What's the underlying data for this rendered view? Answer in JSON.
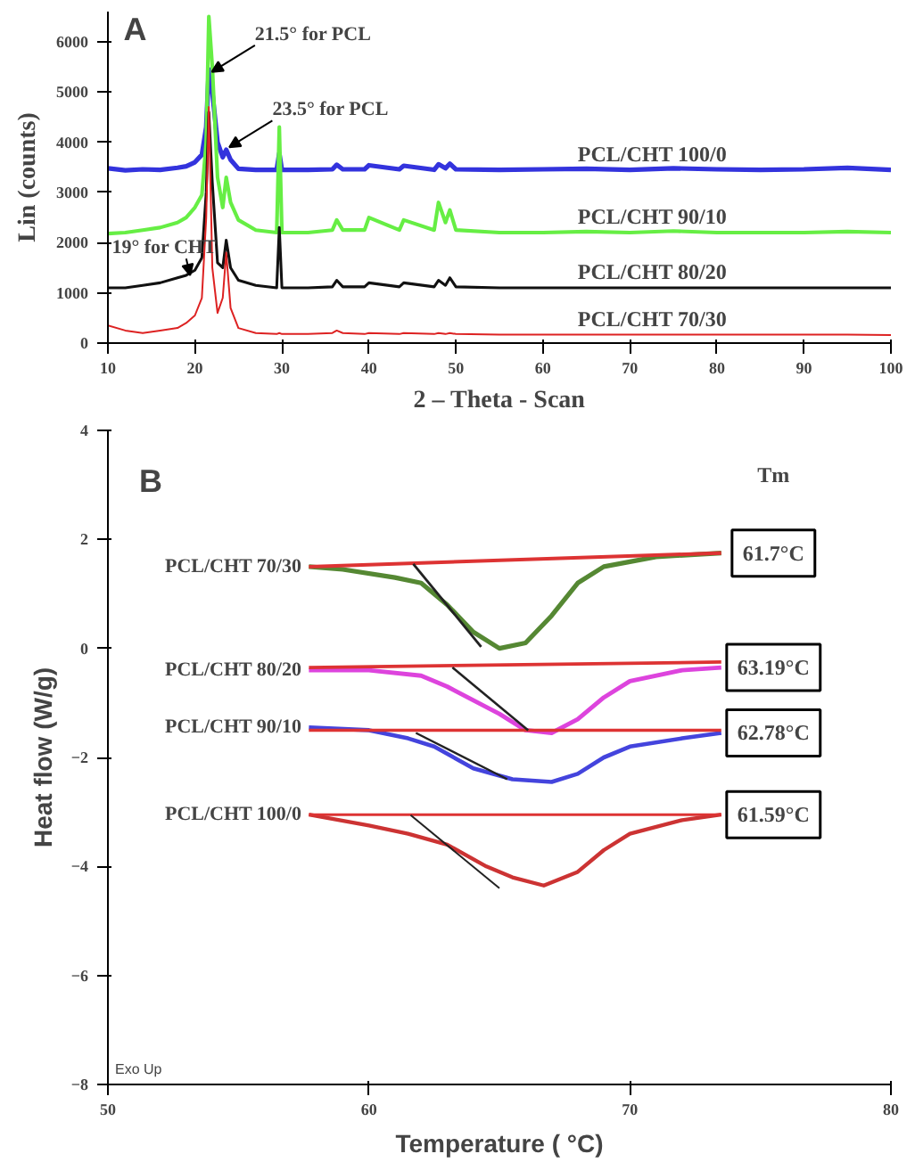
{
  "chart_data": [
    {
      "type": "line",
      "title": "A",
      "xlabel": "2 – Theta - Scan",
      "ylabel": "Lin (counts)",
      "xlim": [
        10,
        100
      ],
      "ylim": [
        0,
        6600
      ],
      "xticks": [
        10,
        20,
        30,
        40,
        50,
        60,
        70,
        80,
        90,
        100
      ],
      "yticks": [
        0,
        1000,
        2000,
        3000,
        4000,
        5000,
        6000
      ],
      "annotations": [
        {
          "text": "21.5° for PCL",
          "x": 21.5,
          "y": 5400
        },
        {
          "text": "23.5° for PCL",
          "x": 23.5,
          "y": 3900
        },
        {
          "text": "19° for CHT",
          "x": 19,
          "y": 1350
        }
      ],
      "series": [
        {
          "name": "PCL/CHT 100/0",
          "color": "#3333dd",
          "x": [
            10,
            12,
            14,
            16,
            18,
            19,
            20,
            20.8,
            21.3,
            21.6,
            22,
            22.6,
            23.2,
            23.6,
            24.1,
            25,
            27,
            29.4,
            29.7,
            30,
            33,
            35.8,
            36.3,
            37,
            39.5,
            40,
            43.5,
            44,
            47.5,
            48,
            48.8,
            49.3,
            50,
            55,
            60,
            65,
            70,
            75,
            80,
            85,
            90,
            95,
            100
          ],
          "values": [
            3480,
            3440,
            3460,
            3450,
            3490,
            3520,
            3600,
            3750,
            4300,
            5450,
            5000,
            4000,
            3700,
            3850,
            3650,
            3470,
            3450,
            3450,
            3780,
            3450,
            3450,
            3460,
            3550,
            3460,
            3460,
            3540,
            3460,
            3530,
            3450,
            3560,
            3480,
            3570,
            3460,
            3450,
            3460,
            3470,
            3450,
            3480,
            3460,
            3450,
            3460,
            3490,
            3450
          ]
        },
        {
          "name": "PCL/CHT 90/10",
          "color": "#66ee44",
          "x": [
            10,
            12,
            14,
            16,
            18,
            19,
            20,
            20.8,
            21.3,
            21.6,
            22,
            22.6,
            23.2,
            23.6,
            24.1,
            25,
            27,
            29.4,
            29.7,
            30,
            33,
            35.8,
            36.3,
            37,
            39.5,
            40,
            43.5,
            44,
            47.5,
            48,
            48.8,
            49.3,
            50,
            55,
            60,
            65,
            70,
            75,
            80,
            85,
            90,
            95,
            100
          ],
          "values": [
            2180,
            2200,
            2250,
            2300,
            2400,
            2500,
            2700,
            2950,
            4000,
            6500,
            5500,
            3300,
            2700,
            3300,
            2800,
            2450,
            2250,
            2200,
            4300,
            2200,
            2200,
            2250,
            2450,
            2250,
            2250,
            2500,
            2250,
            2450,
            2250,
            2800,
            2400,
            2650,
            2250,
            2200,
            2200,
            2220,
            2200,
            2230,
            2200,
            2200,
            2200,
            2220,
            2200
          ]
        },
        {
          "name": "PCL/CHT 80/20",
          "color": "#111111",
          "x": [
            10,
            12,
            14,
            16,
            18,
            19,
            20,
            20.8,
            21.3,
            21.6,
            22,
            22.6,
            23.2,
            23.6,
            24.1,
            25,
            27,
            29.4,
            29.7,
            30,
            33,
            35.8,
            36.3,
            37,
            39.5,
            40,
            43.5,
            44,
            47.5,
            48,
            48.8,
            49.3,
            50,
            55,
            60,
            65,
            70,
            75,
            80,
            85,
            90,
            95,
            100
          ],
          "values": [
            1100,
            1100,
            1150,
            1200,
            1300,
            1350,
            1450,
            1700,
            3000,
            4600,
            3200,
            1600,
            1500,
            2050,
            1500,
            1250,
            1150,
            1100,
            2300,
            1100,
            1100,
            1120,
            1250,
            1120,
            1120,
            1200,
            1120,
            1200,
            1120,
            1250,
            1150,
            1300,
            1120,
            1100,
            1100,
            1100,
            1100,
            1100,
            1100,
            1100,
            1100,
            1100,
            1100
          ]
        },
        {
          "name": "PCL/CHT 70/30",
          "color": "#dd2222",
          "x": [
            10,
            12,
            14,
            16,
            18,
            19,
            20,
            20.8,
            21.3,
            21.6,
            22,
            22.6,
            23.2,
            23.6,
            24.1,
            25,
            27,
            29.4,
            29.7,
            30,
            33,
            35.8,
            36.3,
            37,
            39.5,
            40,
            43.5,
            44,
            47.5,
            48,
            48.8,
            49.3,
            50,
            55,
            60,
            65,
            70,
            75,
            80,
            85,
            90,
            95,
            100
          ],
          "values": [
            350,
            250,
            200,
            250,
            300,
            400,
            550,
            900,
            2500,
            4700,
            1500,
            600,
            900,
            1800,
            700,
            300,
            200,
            180,
            200,
            180,
            180,
            200,
            250,
            200,
            180,
            200,
            180,
            200,
            180,
            200,
            180,
            200,
            180,
            170,
            170,
            170,
            170,
            170,
            170,
            170,
            170,
            170,
            160
          ]
        }
      ]
    },
    {
      "type": "line",
      "title": "B",
      "xlabel": "Temperature ( °C)",
      "ylabel": "Heat flow (W/g)",
      "xlim": [
        50,
        80
      ],
      "ylim": [
        -8,
        4
      ],
      "xticks": [
        50,
        60,
        70,
        80
      ],
      "yticks": [
        -8,
        -6,
        -4,
        -2,
        0,
        2,
        4
      ],
      "annotations": [
        "Tm",
        "61.7°C",
        "63.19°C",
        "62.78°C",
        "61.59°C",
        "Exo Up"
      ],
      "series": [
        {
          "name": "PCL/CHT 70/30",
          "color": "#558833",
          "x": [
            57.7,
            59,
            61,
            62,
            63,
            64,
            65,
            66,
            67,
            68,
            69,
            71,
            73.5
          ],
          "values": [
            1.5,
            1.45,
            1.3,
            1.2,
            0.8,
            0.3,
            0.0,
            0.1,
            0.6,
            1.2,
            1.5,
            1.68,
            1.75
          ]
        },
        {
          "name": "PCL/CHT 80/20",
          "color": "#dd44dd",
          "x": [
            57.7,
            60,
            62,
            63,
            65,
            66,
            67,
            68,
            69,
            70,
            72,
            73.5
          ],
          "values": [
            -0.4,
            -0.4,
            -0.5,
            -0.7,
            -1.2,
            -1.5,
            -1.55,
            -1.3,
            -0.9,
            -0.6,
            -0.4,
            -0.35
          ]
        },
        {
          "name": "PCL/CHT 90/10",
          "color": "#4444dd",
          "x": [
            57.7,
            60,
            61.5,
            62.5,
            64,
            65.5,
            67,
            68,
            69,
            70,
            72,
            73.5
          ],
          "values": [
            -1.45,
            -1.5,
            -1.65,
            -1.8,
            -2.2,
            -2.4,
            -2.45,
            -2.3,
            -2.0,
            -1.8,
            -1.65,
            -1.55
          ]
        },
        {
          "name": "PCL/CHT 100/0",
          "color": "#cc3333",
          "x": [
            57.7,
            60,
            61.5,
            63,
            64.5,
            65.5,
            66.7,
            68,
            69,
            70,
            72,
            73.5
          ],
          "values": [
            -3.05,
            -3.25,
            -3.4,
            -3.6,
            -4.0,
            -4.2,
            -4.35,
            -4.1,
            -3.7,
            -3.4,
            -3.15,
            -3.05
          ]
        },
        {
          "color": "#dd3333",
          "x": [
            57.7,
            73.5
          ],
          "values": [
            1.5,
            1.75
          ]
        },
        {
          "color": "#dd3333",
          "x": [
            57.7,
            73.5
          ],
          "values": [
            -0.35,
            -0.25
          ]
        },
        {
          "color": "#dd3333",
          "x": [
            57.7,
            73.5
          ],
          "values": [
            -1.5,
            -1.5
          ]
        },
        {
          "color": "#dd3333",
          "x": [
            57.7,
            73.5
          ],
          "values": [
            -3.05,
            -3.05
          ]
        },
        {
          "color": "#222222",
          "x": [
            61.7,
            64.3
          ],
          "values": [
            1.55,
            0.03
          ]
        },
        {
          "color": "#222222",
          "x": [
            63.2,
            66.1
          ],
          "values": [
            -0.35,
            -1.5
          ]
        },
        {
          "color": "#222222",
          "x": [
            61.8,
            65.3
          ],
          "values": [
            -1.55,
            -2.4
          ]
        },
        {
          "color": "#222222",
          "x": [
            61.6,
            65.0
          ],
          "values": [
            -3.06,
            -4.4
          ]
        }
      ]
    }
  ]
}
